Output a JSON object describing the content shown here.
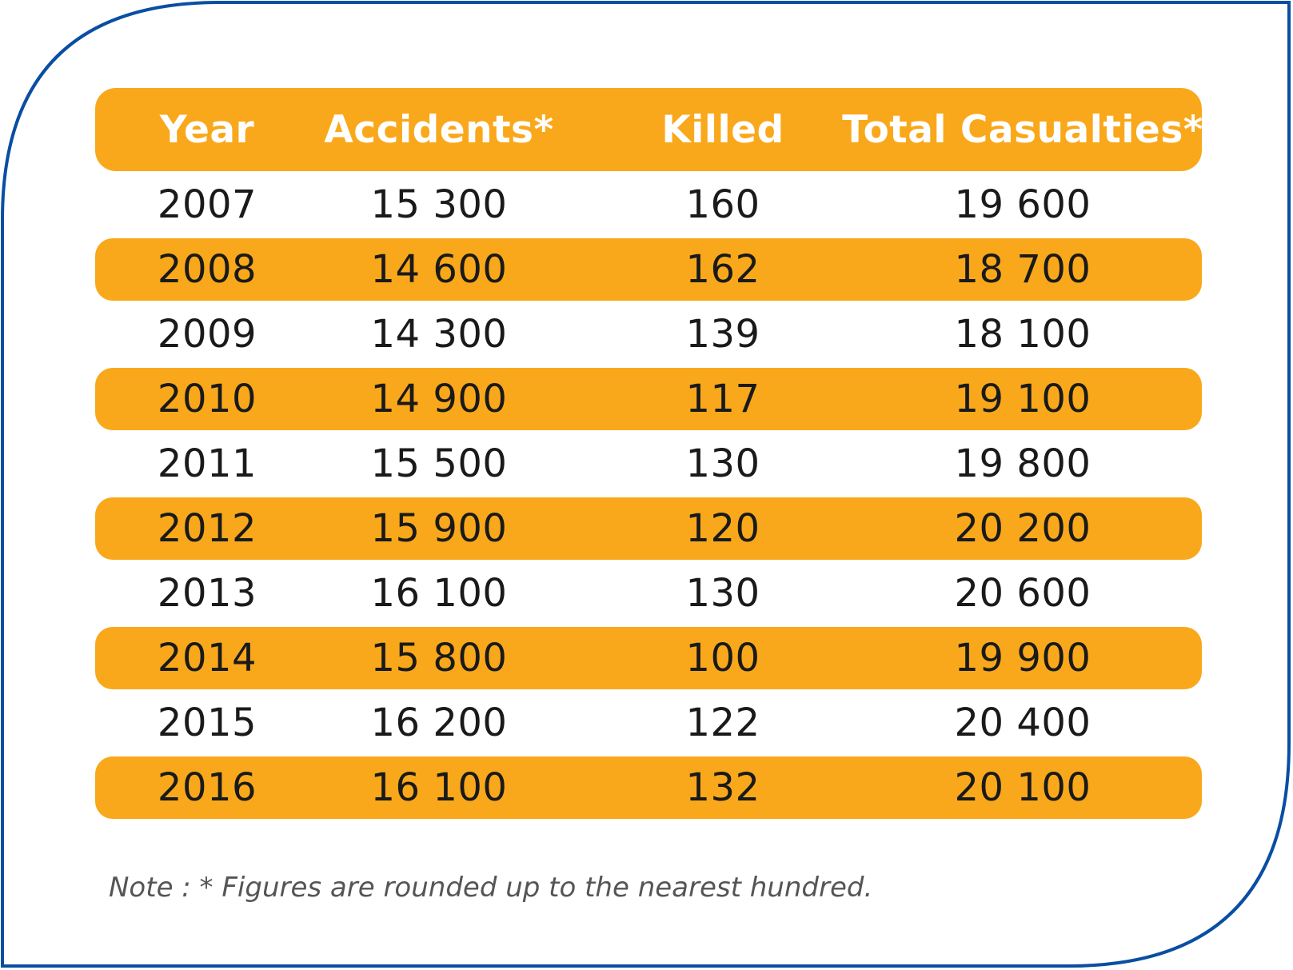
{
  "colors": {
    "border": "#0a4ea3",
    "band": "#f9a81b",
    "header_text": "#ffffff",
    "cell_text": "#1a1a1a",
    "note_text": "#555555"
  },
  "chart_data": {
    "type": "table",
    "columns": [
      "Year",
      "Accidents*",
      "Killed",
      "Total Casualties*"
    ],
    "rows": [
      [
        "2007",
        "15 300",
        "160",
        "19 600"
      ],
      [
        "2008",
        "14 600",
        "162",
        "18 700"
      ],
      [
        "2009",
        "14 300",
        "139",
        "18 100"
      ],
      [
        "2010",
        "14 900",
        "117",
        "19 100"
      ],
      [
        "2011",
        "15 500",
        "130",
        "19 800"
      ],
      [
        "2012",
        "15 900",
        "120",
        "20 200"
      ],
      [
        "2013",
        "16 100",
        "130",
        "20 600"
      ],
      [
        "2014",
        "15 800",
        "100",
        "19 900"
      ],
      [
        "2015",
        "16 200",
        "122",
        "20 400"
      ],
      [
        "2016",
        "16 100",
        "132",
        "20 100"
      ]
    ],
    "note": "Note : * Figures are rounded up to the nearest hundred."
  }
}
